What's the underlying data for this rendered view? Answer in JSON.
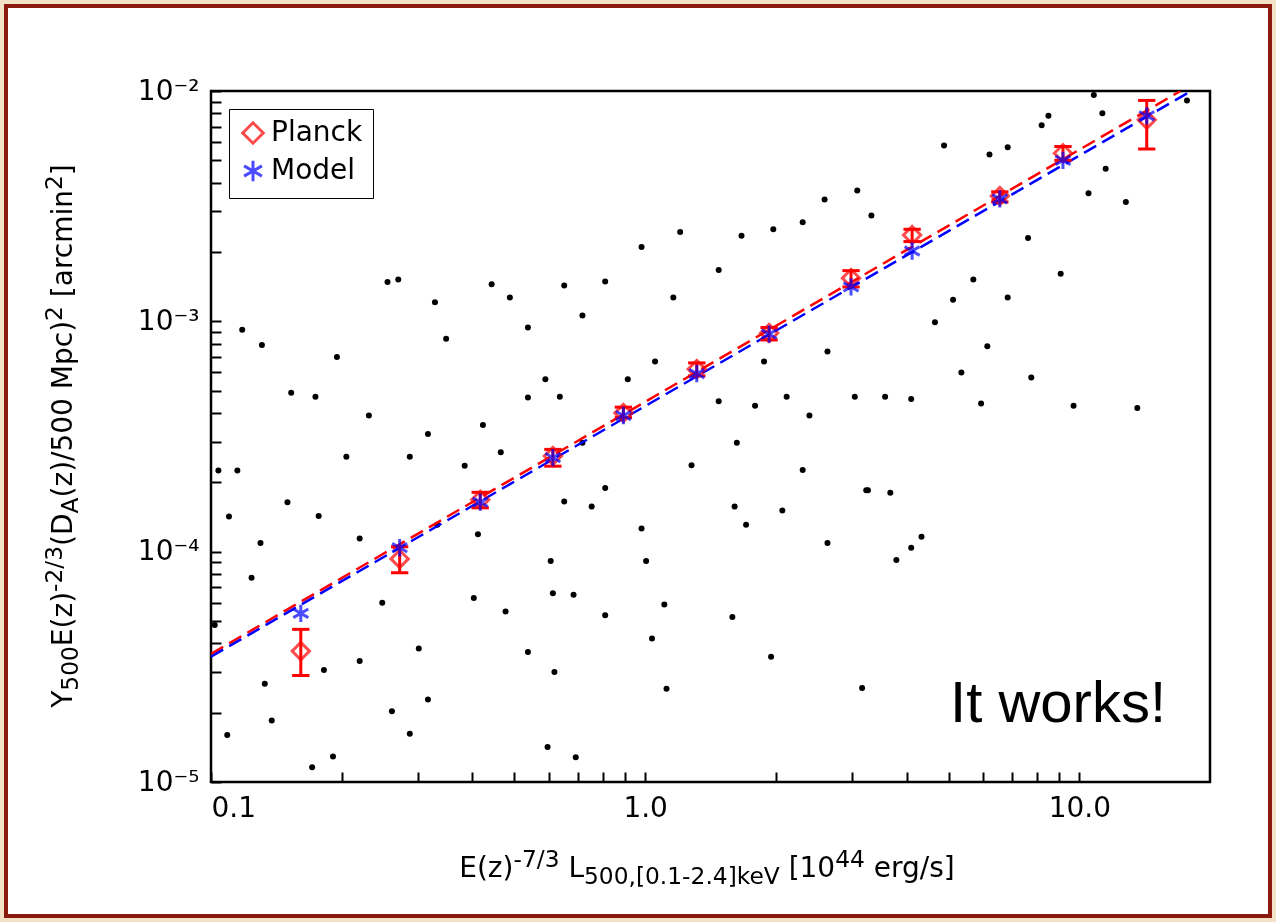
{
  "chart_data": {
    "type": "scatter",
    "xlabel": "E(z)$^{-7/3}$ L$_{500,[0.1-2.4]keV}$ [10$^{44}$ erg/s]",
    "ylabel": "Y$_{500}$E(z)$^{-2/3}$(D$_{A}$(z)/500 Mpc)$^{2}$ [arcmin$^{2}$]",
    "annotations": [
      "It works!"
    ],
    "log": "xy",
    "legend": "top left",
    "xlim": [
      0.1,
      20
    ],
    "ylim": [
      1e-05,
      0.01
    ],
    "xticks": [
      {
        "value": 0.1,
        "label": "0.1"
      },
      {
        "value": 0.2,
        "label": null
      },
      {
        "value": 0.3,
        "label": null
      },
      {
        "value": 0.4,
        "label": null
      },
      {
        "value": 0.5,
        "label": null
      },
      {
        "value": 0.6,
        "label": null
      },
      {
        "value": 0.7,
        "label": null
      },
      {
        "value": 0.8,
        "label": null
      },
      {
        "value": 0.9,
        "label": null
      },
      {
        "value": 1,
        "label": "1.0"
      },
      {
        "value": 2,
        "label": null
      },
      {
        "value": 3,
        "label": null
      },
      {
        "value": 4,
        "label": null
      },
      {
        "value": 5,
        "label": null
      },
      {
        "value": 6,
        "label": null
      },
      {
        "value": 7,
        "label": null
      },
      {
        "value": 8,
        "label": null
      },
      {
        "value": 9,
        "label": null
      },
      {
        "value": 10,
        "label": "10.0"
      }
    ],
    "yticks": [
      {
        "value": 1e-05,
        "label": "10⁻⁵"
      },
      {
        "value": 2e-05,
        "label": null
      },
      {
        "value": 3e-05,
        "label": null
      },
      {
        "value": 4e-05,
        "label": null
      },
      {
        "value": 5e-05,
        "label": null
      },
      {
        "value": 6e-05,
        "label": null
      },
      {
        "value": 7e-05,
        "label": null
      },
      {
        "value": 8e-05,
        "label": null
      },
      {
        "value": 9e-05,
        "label": null
      },
      {
        "value": 0.0001,
        "label": "10⁻⁴"
      },
      {
        "value": 0.0002,
        "label": null
      },
      {
        "value": 0.0003,
        "label": null
      },
      {
        "value": 0.0004,
        "label": null
      },
      {
        "value": 0.0005,
        "label": null
      },
      {
        "value": 0.0006,
        "label": null
      },
      {
        "value": 0.0007,
        "label": null
      },
      {
        "value": 0.0008,
        "label": null
      },
      {
        "value": 0.0009,
        "label": null
      },
      {
        "value": 0.001,
        "label": "10⁻³"
      },
      {
        "value": 0.002,
        "label": null
      },
      {
        "value": 0.003,
        "label": null
      },
      {
        "value": 0.004,
        "label": null
      },
      {
        "value": 0.005,
        "label": null
      },
      {
        "value": 0.006,
        "label": null
      },
      {
        "value": 0.007,
        "label": null
      },
      {
        "value": 0.008,
        "label": null
      },
      {
        "value": 0.009,
        "label": null
      },
      {
        "value": 0.01,
        "label": "10⁻²"
      }
    ],
    "series": [
      {
        "type": "scatter",
        "color": "#000000",
        "marker": "circle",
        "x": [
          0.118,
          0.131,
          0.153,
          0.255,
          0.27,
          0.195,
          0.174,
          0.104,
          0.11,
          0.124,
          0.109,
          0.171,
          0.287,
          0.316,
          0.191,
          0.138,
          0.348,
          0.328,
          0.443,
          0.488,
          0.537,
          0.231,
          0.205,
          0.287,
          0.316,
          0.384,
          0.465,
          0.537,
          0.423,
          0.15,
          0.177,
          0.22,
          0.332,
          0.412,
          0.248,
          0.301,
          0.403,
          0.477,
          0.133,
          0.182,
          0.22,
          0.261,
          0.537,
          0.13,
          0.115,
          0.102,
          0.589,
          0.651,
          0.717,
          0.809,
          0.981,
          1.204,
          1.667,
          1.973,
          2.306,
          2.59,
          3.08,
          1.161,
          1.477,
          0.636,
          0.717,
          0.912,
          1.054,
          0.809,
          0.753,
          0.651,
          0.981,
          1.279,
          1.477,
          1.626,
          1.791,
          2.118,
          2.39,
          3.04,
          2.63,
          1.879,
          2.306,
          1.607,
          1.708,
          2.07,
          0.613,
          0.684,
          0.809,
          1.037,
          1.107,
          1.588,
          1.95,
          2.63,
          1.12,
          0.618,
          0.596,
          0.692,
          3.16,
          3.23,
          0.606,
          1.005,
          3.32,
          4.88,
          6.21,
          8.49,
          10.8,
          11.3,
          17.7,
          12.8,
          11.5,
          10.5,
          9.06,
          7.62,
          6.84,
          9.7,
          13.6,
          7.75,
          5.94,
          5.35,
          6.14,
          4.65,
          3.57,
          4.1,
          3.67,
          3.26,
          3.79,
          4.1,
          4.33,
          5.7,
          6.84,
          8.19,
          5.12
        ],
        "values": [
          0.00092,
          0.00079,
          0.00049,
          0.00148,
          0.00152,
          0.0007,
          0.00047,
          0.000225,
          0.000142,
          7.7e-05,
          1.6e-05,
          1.16e-05,
          1.62e-05,
          2.28e-05,
          1.29e-05,
          1.85e-05,
          0.00084,
          0.00121,
          0.00145,
          0.00127,
          0.00094,
          0.00039,
          0.000258,
          0.000258,
          0.000324,
          0.000236,
          0.00027,
          0.000467,
          0.000355,
          0.000164,
          0.000143,
          0.000114,
          0.000131,
          0.000119,
          6e-05,
          3.8e-05,
          6.3e-05,
          5.5e-05,
          2.67e-05,
          3.06e-05,
          3.35e-05,
          2.03e-05,
          3.67e-05,
          0.000109,
          0.000225,
          4.8e-05,
          0.00056,
          0.00143,
          0.00106,
          0.00149,
          0.0021,
          0.00244,
          0.00235,
          0.00251,
          0.00269,
          0.00338,
          0.0037,
          0.00127,
          0.00167,
          0.00047,
          0.000297,
          0.00056,
          0.00067,
          0.000189,
          0.000157,
          0.000165,
          0.000126,
          0.000237,
          0.00045,
          0.000297,
          0.00043,
          0.00047,
          0.00039,
          0.00047,
          0.00074,
          0.00067,
          0.000226,
          0.000157,
          0.000131,
          0.000151,
          6.6e-05,
          6.5e-05,
          5.3e-05,
          4.2e-05,
          5.9e-05,
          5.2e-05,
          3.5e-05,
          0.000109,
          2.54e-05,
          3e-05,
          1.42e-05,
          1.28e-05,
          2.56e-05,
          0.000185,
          9.1e-05,
          9.1e-05,
          0.00288,
          0.0058,
          0.0053,
          0.0078,
          0.0096,
          0.008,
          0.0091,
          0.0033,
          0.0046,
          0.0036,
          0.00161,
          0.0023,
          0.00127,
          0.00043,
          0.00042,
          0.00057,
          0.00044,
          0.0006,
          0.00078,
          0.00099,
          0.00047,
          0.00046,
          0.00018,
          0.000185,
          9.2e-05,
          0.000104,
          0.000116,
          0.00152,
          0.0057,
          0.0071,
          0.00124
        ]
      },
      {
        "type": "line",
        "color": "#ff0000",
        "line_style": "dashed",
        "x": [
          0.1,
          17.1
        ],
        "values": [
          3.6e-05,
          0.01
        ]
      },
      {
        "type": "line",
        "color": "#0000ff",
        "line_style": "dashed",
        "x": [
          0.1,
          18.1
        ],
        "values": [
          3.5e-05,
          0.01
        ]
      },
      {
        "type": "scatter",
        "name": "Planck",
        "color": "#ff0000",
        "marker": "diamond",
        "x": [
          0.161,
          0.272,
          0.417,
          0.613,
          0.891,
          1.315,
          1.93,
          2.98,
          4.12,
          6.56,
          9.17,
          14.3
        ],
        "values": [
          3.7e-05,
          9.3e-05,
          0.000168,
          0.00026,
          0.0004,
          0.00062,
          0.00089,
          0.00154,
          0.00237,
          0.0035,
          0.00537,
          0.0075
        ],
        "errors": [
          [
            2.9e-05,
            4.6e-05
          ],
          [
            8.1e-05,
            0.000105
          ],
          [
            0.000155,
            0.000181
          ],
          [
            0.000235,
            0.000278
          ],
          [
            0.000382,
            0.000424
          ],
          [
            0.00058,
            0.00066
          ],
          [
            0.00083,
            0.00094
          ],
          [
            0.00141,
            0.00166
          ],
          [
            0.00222,
            0.00251
          ],
          [
            0.0033,
            0.00365
          ],
          [
            0.005,
            0.00574
          ],
          [
            0.0056,
            0.0091
          ]
        ]
      },
      {
        "type": "scatter",
        "name": "Model",
        "color": "#0000ff",
        "marker": "cross",
        "x": [
          0.161,
          0.272,
          0.417,
          0.613,
          0.891,
          1.315,
          1.93,
          2.98,
          4.12,
          6.56,
          9.17,
          14.3
        ],
        "values": [
          5.4e-05,
          0.000104,
          0.000164,
          0.000256,
          0.00039,
          0.000593,
          0.00088,
          0.00141,
          0.00202,
          0.0034,
          0.005,
          0.0078
        ]
      }
    ]
  }
}
